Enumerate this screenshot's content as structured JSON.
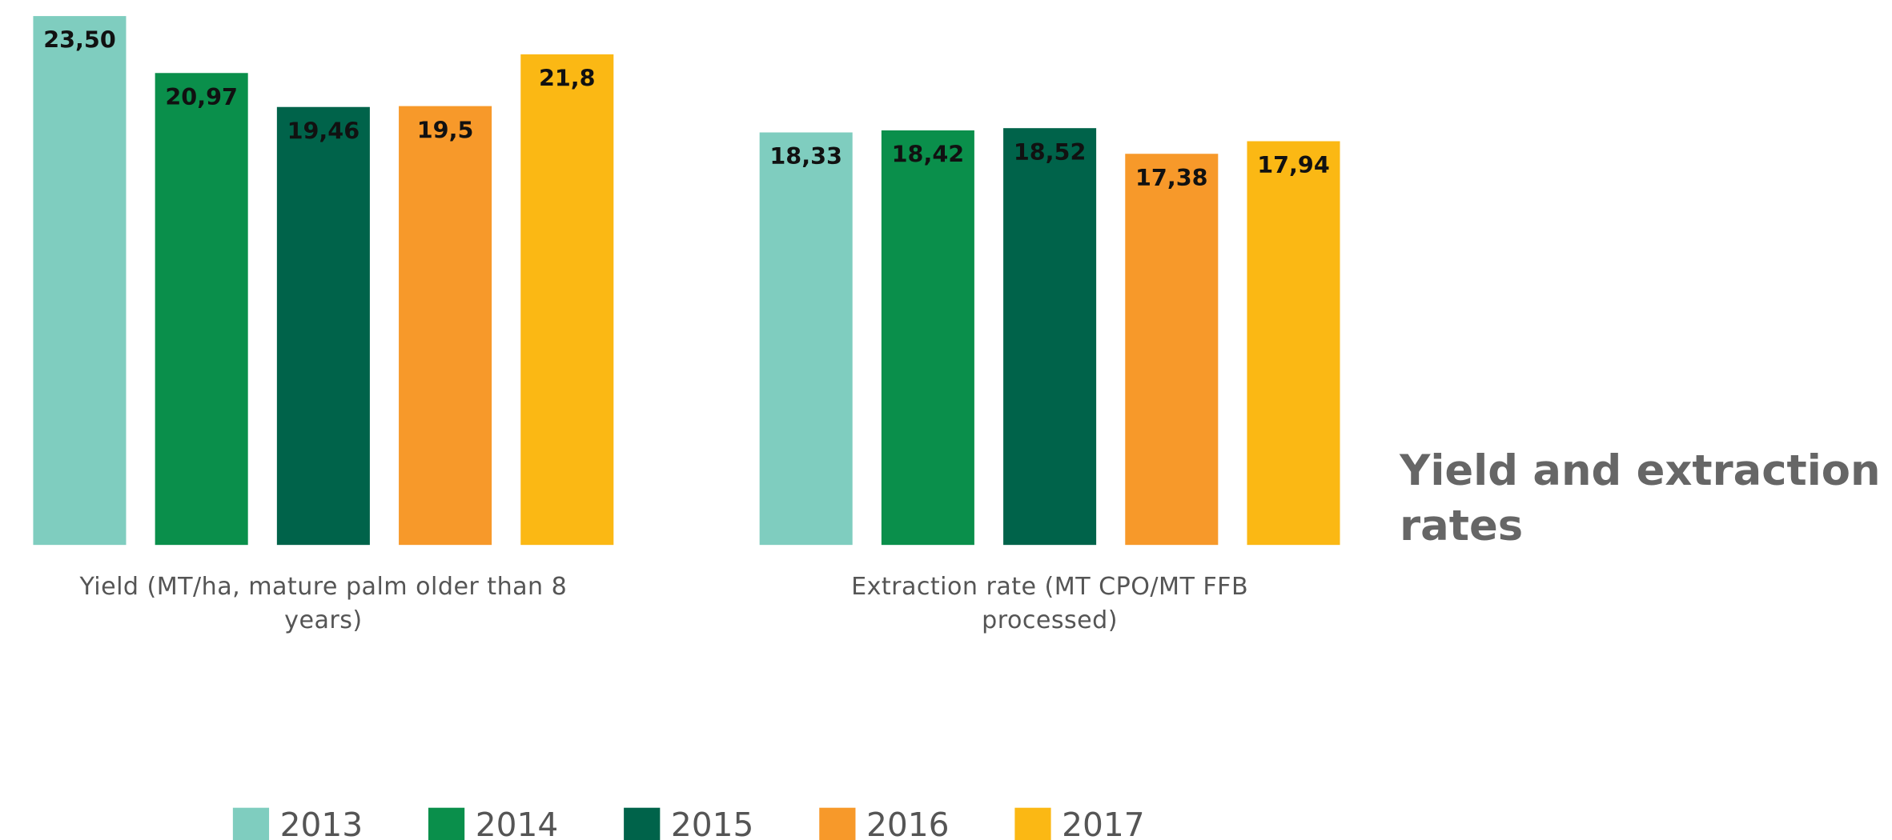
{
  "chart_data": {
    "type": "bar",
    "title": "Yield and extraction rates",
    "categories": [
      "Yield (MT/ha, mature palm older than 8 years)",
      "Extraction rate (MT CPO/MT FFB processed)"
    ],
    "series": [
      {
        "name": "2013",
        "color": "#7fcdbf",
        "values": [
          23.5,
          18.33
        ],
        "value_labels": [
          "23,50",
          "18,33"
        ]
      },
      {
        "name": "2014",
        "color": "#0a8f4b",
        "values": [
          20.97,
          18.42
        ],
        "value_labels": [
          "20,97",
          "18,42"
        ]
      },
      {
        "name": "2015",
        "color": "#00634a",
        "values": [
          19.46,
          18.52
        ],
        "value_labels": [
          "19,46",
          "18,52"
        ]
      },
      {
        "name": "2016",
        "color": "#f7992a",
        "values": [
          19.5,
          17.38
        ],
        "value_labels": [
          "19,5",
          "17,38"
        ]
      },
      {
        "name": "2017",
        "color": "#fbb814",
        "values": [
          21.8,
          17.94
        ],
        "value_labels": [
          "21,8",
          "17,94"
        ]
      }
    ],
    "ylim": [
      0,
      24
    ],
    "legend": "bottom"
  }
}
